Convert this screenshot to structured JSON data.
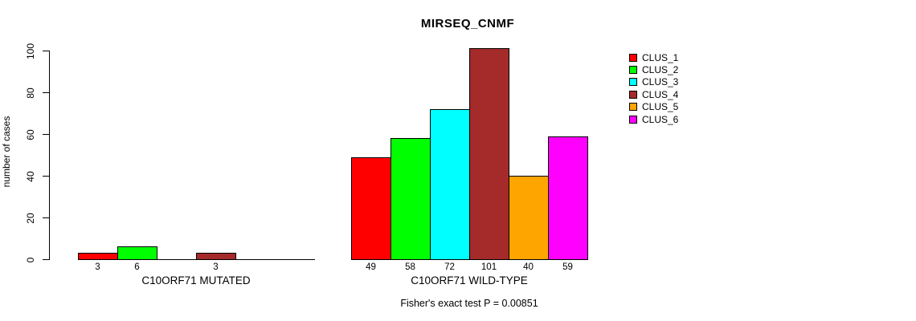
{
  "chart_data": {
    "type": "bar",
    "title": "MIRSEQ_CNMF",
    "ylabel": "number of cases",
    "xlabel": "",
    "yticks": [
      0,
      20,
      40,
      60,
      80,
      100
    ],
    "ylim": [
      0,
      101
    ],
    "grid": false,
    "legend_position": "right",
    "series_names": [
      "CLUS_1",
      "CLUS_2",
      "CLUS_3",
      "CLUS_4",
      "CLUS_5",
      "CLUS_6"
    ],
    "series_colors": [
      "#ff0000",
      "#00ff00",
      "#00ffff",
      "#a52a2a",
      "#ffa500",
      "#ff00ff"
    ],
    "groups": [
      {
        "label": "C10ORF71 MUTATED",
        "values": [
          3,
          6,
          0,
          3,
          0,
          0
        ],
        "bar_labels": [
          "3",
          "6",
          "",
          "3",
          "",
          ""
        ]
      },
      {
        "label": "C10ORF71 WILD-TYPE",
        "values": [
          49,
          58,
          72,
          101,
          40,
          59
        ],
        "bar_labels": [
          "49",
          "58",
          "72",
          "101",
          "40",
          "59"
        ]
      }
    ],
    "legend": [
      {
        "label": "CLUS_1",
        "color": "#ff0000"
      },
      {
        "label": "CLUS_2",
        "color": "#00ff00"
      },
      {
        "label": "CLUS_3",
        "color": "#00ffff"
      },
      {
        "label": "CLUS_4",
        "color": "#a52a2a"
      },
      {
        "label": "CLUS_5",
        "color": "#ffa500"
      },
      {
        "label": "CLUS_6",
        "color": "#ff00ff"
      }
    ],
    "footnote": "Fisher's exact test P = 0.00851",
    "axis_color": "#000000",
    "background_color": "#ffffff"
  }
}
